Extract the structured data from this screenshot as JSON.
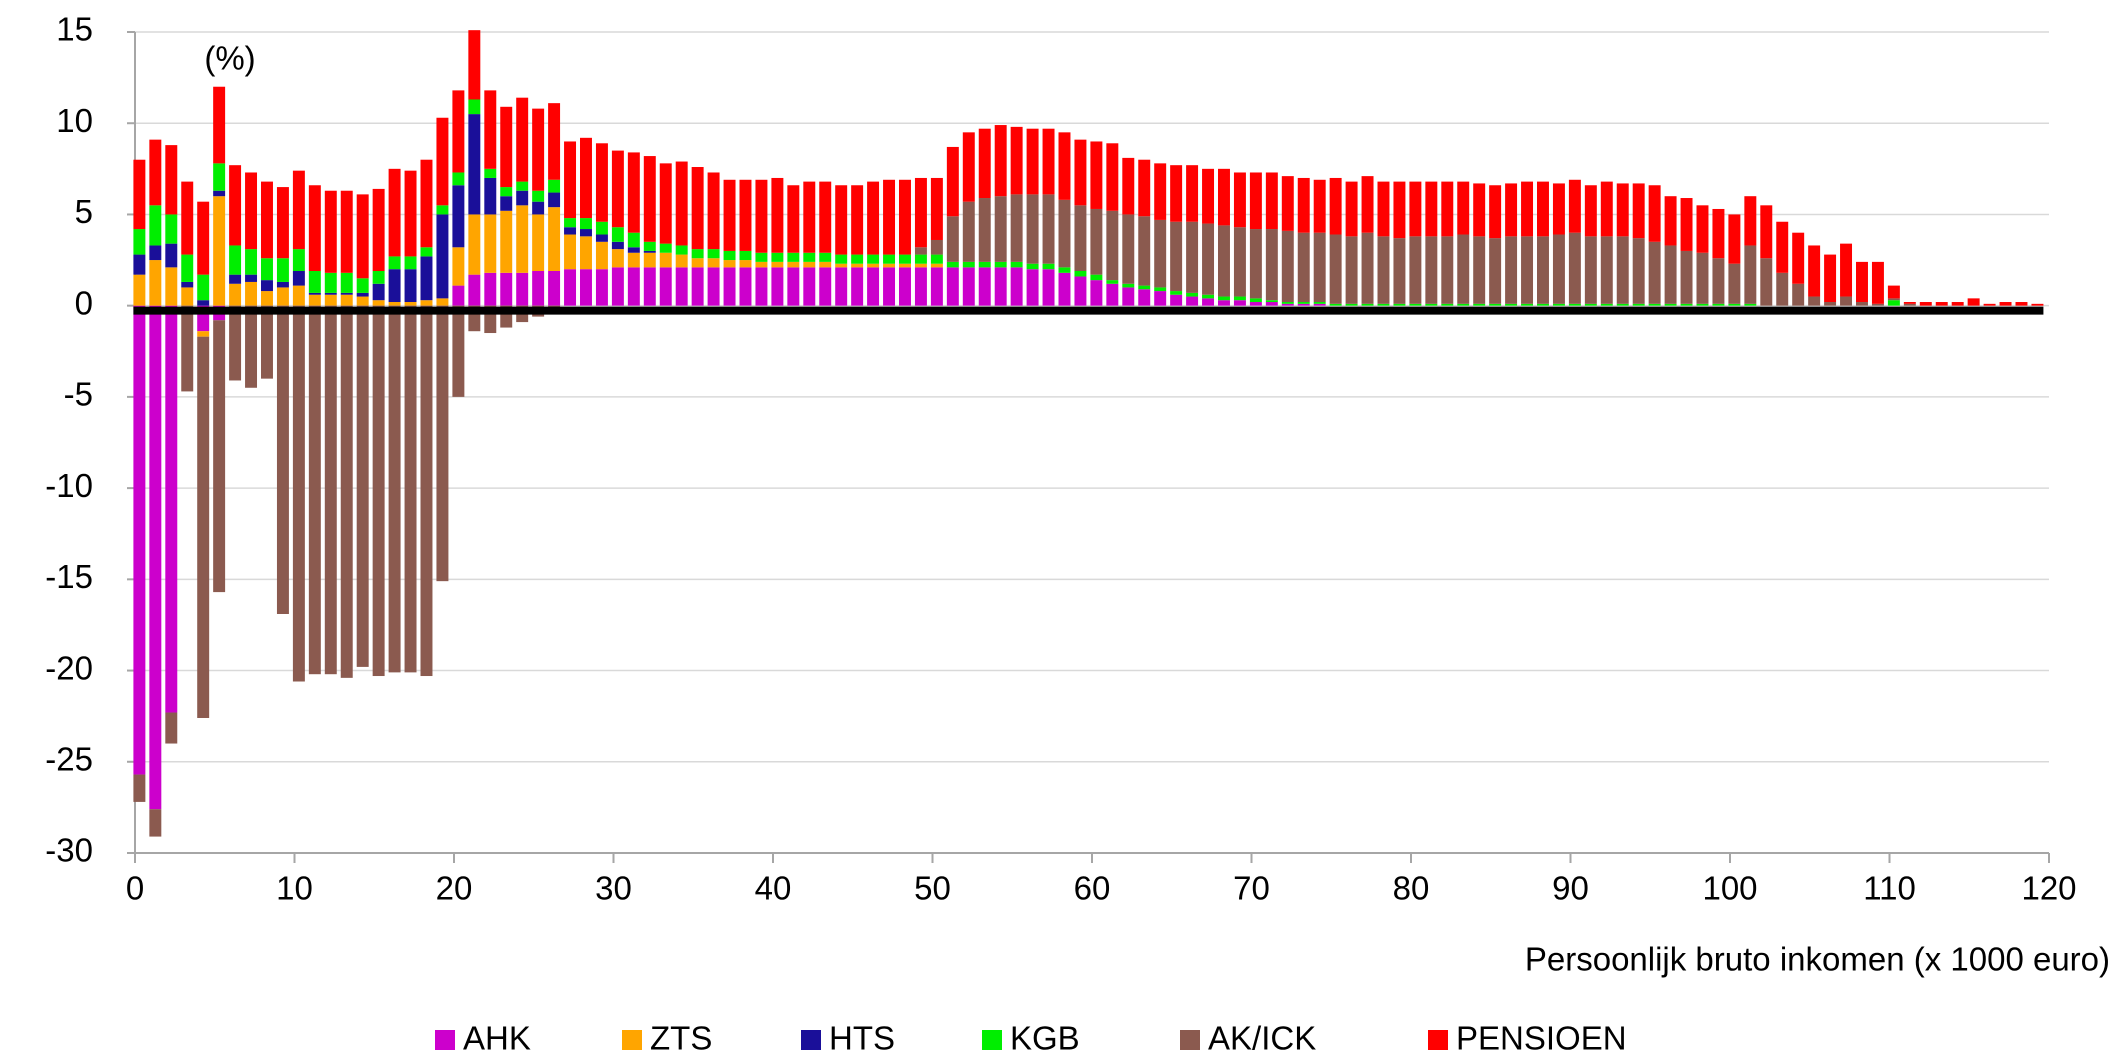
{
  "chart_data": {
    "type": "stacked_bar",
    "annotation": "(%)",
    "x_label": "Persoonlijk bruto inkomen (x 1000 euro)",
    "xlim": [
      0,
      120
    ],
    "xticks": [
      0,
      10,
      20,
      30,
      40,
      50,
      60,
      70,
      80,
      90,
      100,
      110,
      120
    ],
    "ylim": [
      -30,
      15
    ],
    "yticks": [
      -30,
      -25,
      -20,
      -15,
      -10,
      -5,
      0,
      5,
      10,
      15
    ],
    "grid": true,
    "legend": "bottom",
    "x": [
      0,
      1,
      2,
      3,
      4,
      5,
      6,
      7,
      8,
      9,
      10,
      11,
      12,
      13,
      14,
      15,
      16,
      17,
      18,
      19,
      20,
      21,
      22,
      23,
      24,
      25,
      26,
      27,
      28,
      29,
      30,
      31,
      32,
      33,
      34,
      35,
      36,
      37,
      38,
      39,
      40,
      41,
      42,
      43,
      44,
      45,
      46,
      47,
      48,
      49,
      50,
      51,
      52,
      53,
      54,
      55,
      56,
      57,
      58,
      59,
      60,
      61,
      62,
      63,
      64,
      65,
      66,
      67,
      68,
      69,
      70,
      71,
      72,
      73,
      74,
      75,
      76,
      77,
      78,
      79,
      80,
      81,
      82,
      83,
      84,
      85,
      86,
      87,
      88,
      89,
      90,
      91,
      92,
      93,
      94,
      95,
      96,
      97,
      98,
      99,
      100,
      101,
      102,
      103,
      104,
      105,
      106,
      107,
      108,
      109,
      110,
      111,
      112,
      113,
      114,
      115,
      116,
      117,
      118,
      119
    ],
    "series": [
      {
        "name": "AHK",
        "color": "#cc00cc",
        "values": [
          -25.7,
          -27.6,
          -22.3,
          0,
          -1.4,
          -0.8,
          0,
          0,
          0,
          0,
          0,
          0,
          0,
          0,
          0,
          0,
          0,
          0,
          0,
          0,
          1.1,
          1.7,
          1.8,
          1.8,
          1.8,
          1.9,
          1.9,
          2.0,
          2.0,
          2.0,
          2.1,
          2.1,
          2.1,
          2.1,
          2.1,
          2.1,
          2.1,
          2.1,
          2.1,
          2.1,
          2.1,
          2.1,
          2.1,
          2.1,
          2.1,
          2.1,
          2.1,
          2.1,
          2.1,
          2.1,
          2.1,
          2.1,
          2.1,
          2.1,
          2.1,
          2.1,
          2.0,
          2.0,
          1.8,
          1.6,
          1.4,
          1.2,
          1.0,
          0.9,
          0.8,
          0.6,
          0.5,
          0.4,
          0.3,
          0.3,
          0.2,
          0.2,
          0.1,
          0.1,
          0.1,
          0,
          0,
          0,
          0,
          0,
          0,
          0,
          0,
          0,
          0,
          0,
          0,
          0,
          0,
          0,
          0,
          0,
          0,
          0,
          0,
          0,
          0,
          0,
          0,
          0,
          0,
          0,
          0,
          0,
          0,
          0,
          0,
          0,
          0,
          0,
          0,
          0,
          0,
          0,
          0,
          0,
          0,
          0,
          0,
          0
        ]
      },
      {
        "name": "ZTS",
        "color": "#ffa500",
        "values": [
          1.7,
          2.5,
          2.1,
          1.0,
          -0.3,
          6.0,
          1.2,
          1.3,
          0.8,
          1.0,
          1.1,
          0.6,
          0.6,
          0.6,
          0.5,
          0.3,
          0.2,
          0.2,
          0.3,
          0.4,
          2.1,
          3.3,
          3.2,
          3.4,
          3.7,
          3.1,
          3.5,
          1.9,
          1.8,
          1.5,
          1.0,
          0.8,
          0.8,
          0.8,
          0.7,
          0.5,
          0.5,
          0.4,
          0.4,
          0.3,
          0.3,
          0.3,
          0.3,
          0.3,
          0.2,
          0.2,
          0.2,
          0.2,
          0.2,
          0.2,
          0.2,
          0,
          0,
          0,
          0,
          0,
          0,
          0,
          0,
          0,
          0,
          0,
          0,
          0,
          0,
          0,
          0,
          0,
          0,
          0,
          0,
          0,
          0,
          0,
          0,
          0,
          0,
          0,
          0,
          0,
          0,
          0,
          0,
          0,
          0,
          0,
          0,
          0,
          0,
          0,
          0,
          0,
          0,
          0,
          0,
          0,
          0,
          0,
          0,
          0,
          0,
          0,
          0,
          0,
          0,
          0,
          0,
          0,
          0,
          0,
          0,
          0,
          0,
          0,
          0,
          0,
          0,
          0,
          0,
          0
        ]
      },
      {
        "name": "HTS",
        "color": "#1a0f99",
        "values": [
          1.1,
          0.8,
          1.3,
          0.3,
          0.3,
          0.3,
          0.5,
          0.4,
          0.6,
          0.3,
          0.8,
          0.1,
          0.1,
          0.1,
          0.2,
          0.9,
          1.8,
          1.8,
          2.4,
          4.6,
          3.4,
          5.5,
          2.0,
          0.8,
          0.8,
          0.7,
          0.8,
          0.4,
          0.4,
          0.4,
          0.4,
          0.3,
          0.1,
          0,
          0,
          0,
          0,
          0,
          0,
          0,
          0,
          0,
          0,
          0,
          0,
          0,
          0,
          0,
          0,
          0,
          0,
          0,
          0,
          0,
          0,
          0,
          0,
          0,
          0,
          0,
          0,
          0,
          0,
          0,
          0,
          0,
          0,
          0,
          0,
          0,
          0,
          0,
          0,
          0,
          0,
          0,
          0,
          0,
          0,
          0,
          0,
          0,
          0,
          0,
          0,
          0,
          0,
          0,
          0,
          0,
          0,
          0,
          0,
          0,
          0,
          0,
          0,
          0,
          0,
          0,
          0,
          0,
          0,
          0,
          0,
          0,
          0,
          0,
          0,
          0,
          0,
          0,
          0,
          0,
          0,
          0,
          0,
          0,
          0,
          0
        ]
      },
      {
        "name": "KGB",
        "color": "#00ee00",
        "values": [
          1.4,
          2.2,
          1.6,
          1.5,
          1.4,
          1.5,
          1.6,
          1.4,
          1.2,
          1.3,
          1.2,
          1.2,
          1.1,
          1.1,
          0.8,
          0.7,
          0.7,
          0.7,
          0.5,
          0.5,
          0.7,
          0.8,
          0.5,
          0.5,
          0.5,
          0.6,
          0.7,
          0.5,
          0.6,
          0.7,
          0.8,
          0.8,
          0.5,
          0.5,
          0.5,
          0.5,
          0.5,
          0.5,
          0.5,
          0.5,
          0.5,
          0.5,
          0.5,
          0.5,
          0.5,
          0.5,
          0.5,
          0.5,
          0.5,
          0.5,
          0.5,
          0.3,
          0.3,
          0.3,
          0.3,
          0.3,
          0.3,
          0.3,
          0.3,
          0.3,
          0.3,
          0.2,
          0.2,
          0.2,
          0.2,
          0.2,
          0.2,
          0.2,
          0.2,
          0.2,
          0.2,
          0.1,
          0.1,
          0.1,
          0.1,
          0.1,
          0.1,
          0.1,
          0.1,
          0.1,
          0.1,
          0.1,
          0.1,
          0.1,
          0.1,
          0.1,
          0.1,
          0.1,
          0.1,
          0.1,
          0.1,
          0.1,
          0.1,
          0.1,
          0.1,
          0.1,
          0.1,
          0.1,
          0.1,
          0.1,
          0.1,
          0.1,
          0,
          0,
          0,
          0,
          0,
          0,
          0,
          0,
          0.3,
          0,
          0,
          0,
          0,
          0,
          0,
          0,
          0,
          0
        ]
      },
      {
        "name": "AK/ICK",
        "color": "#8b5a4f",
        "values": [
          -1.5,
          -1.5,
          -1.7,
          -4.7,
          -20.9,
          -14.9,
          -4.1,
          -4.5,
          -4.0,
          -16.9,
          -20.6,
          -20.2,
          -20.2,
          -20.4,
          -19.8,
          -20.3,
          -20.1,
          -20.1,
          -20.3,
          -15.1,
          -5.0,
          -1.4,
          -1.5,
          -1.2,
          -0.9,
          -0.6,
          -0.3,
          0,
          0,
          0,
          0,
          0,
          0,
          0,
          0,
          0,
          0,
          0,
          0,
          0,
          0,
          0,
          0,
          0,
          0,
          0,
          0,
          0,
          0,
          0.4,
          0.8,
          2.5,
          3.3,
          3.5,
          3.6,
          3.7,
          3.8,
          3.8,
          3.7,
          3.6,
          3.6,
          3.8,
          3.8,
          3.8,
          3.7,
          3.8,
          3.9,
          3.9,
          3.9,
          3.8,
          3.8,
          3.9,
          3.9,
          3.8,
          3.8,
          3.8,
          3.7,
          3.9,
          3.7,
          3.6,
          3.7,
          3.7,
          3.7,
          3.8,
          3.7,
          3.6,
          3.7,
          3.7,
          3.7,
          3.8,
          3.9,
          3.7,
          3.7,
          3.7,
          3.6,
          3.4,
          3.2,
          2.9,
          2.8,
          2.5,
          2.2,
          3.2,
          2.6,
          1.8,
          1.2,
          0.5,
          0.2,
          0.5,
          0.2,
          0.1,
          0.1,
          0.1,
          0,
          0,
          0,
          0,
          0,
          0,
          0,
          0
        ]
      },
      {
        "name": "PENSIOEN",
        "color": "#ff0000",
        "values": [
          3.8,
          3.6,
          3.8,
          4.0,
          4.0,
          4.2,
          4.4,
          4.2,
          4.2,
          3.9,
          4.3,
          4.7,
          4.5,
          4.5,
          4.6,
          4.5,
          4.8,
          4.7,
          4.8,
          4.8,
          4.5,
          3.8,
          4.3,
          4.4,
          4.6,
          4.5,
          4.2,
          4.2,
          4.4,
          4.3,
          4.2,
          4.4,
          4.7,
          4.4,
          4.6,
          4.5,
          4.2,
          3.9,
          3.9,
          4.0,
          4.1,
          3.7,
          3.9,
          3.9,
          3.8,
          3.8,
          4.0,
          4.1,
          4.1,
          3.8,
          3.4,
          3.8,
          3.8,
          3.8,
          3.9,
          3.7,
          3.6,
          3.6,
          3.7,
          3.6,
          3.7,
          3.7,
          3.1,
          3.1,
          3.1,
          3.1,
          3.1,
          3.0,
          3.1,
          3.0,
          3.1,
          3.1,
          3.0,
          3.0,
          2.9,
          3.1,
          3.0,
          3.1,
          3.0,
          3.1,
          3.0,
          3.0,
          3.0,
          2.9,
          2.9,
          2.9,
          2.9,
          3.0,
          3.0,
          2.8,
          2.9,
          2.8,
          3.0,
          2.9,
          3.0,
          3.1,
          2.7,
          2.9,
          2.6,
          2.7,
          2.7,
          2.7,
          2.9,
          2.8,
          2.8,
          2.8,
          2.6,
          2.9,
          2.2,
          2.3,
          0.7,
          0.1,
          0.2,
          0.2,
          0.2,
          0.4,
          0.1,
          0.2,
          0.2,
          0.1
        ]
      }
    ]
  }
}
